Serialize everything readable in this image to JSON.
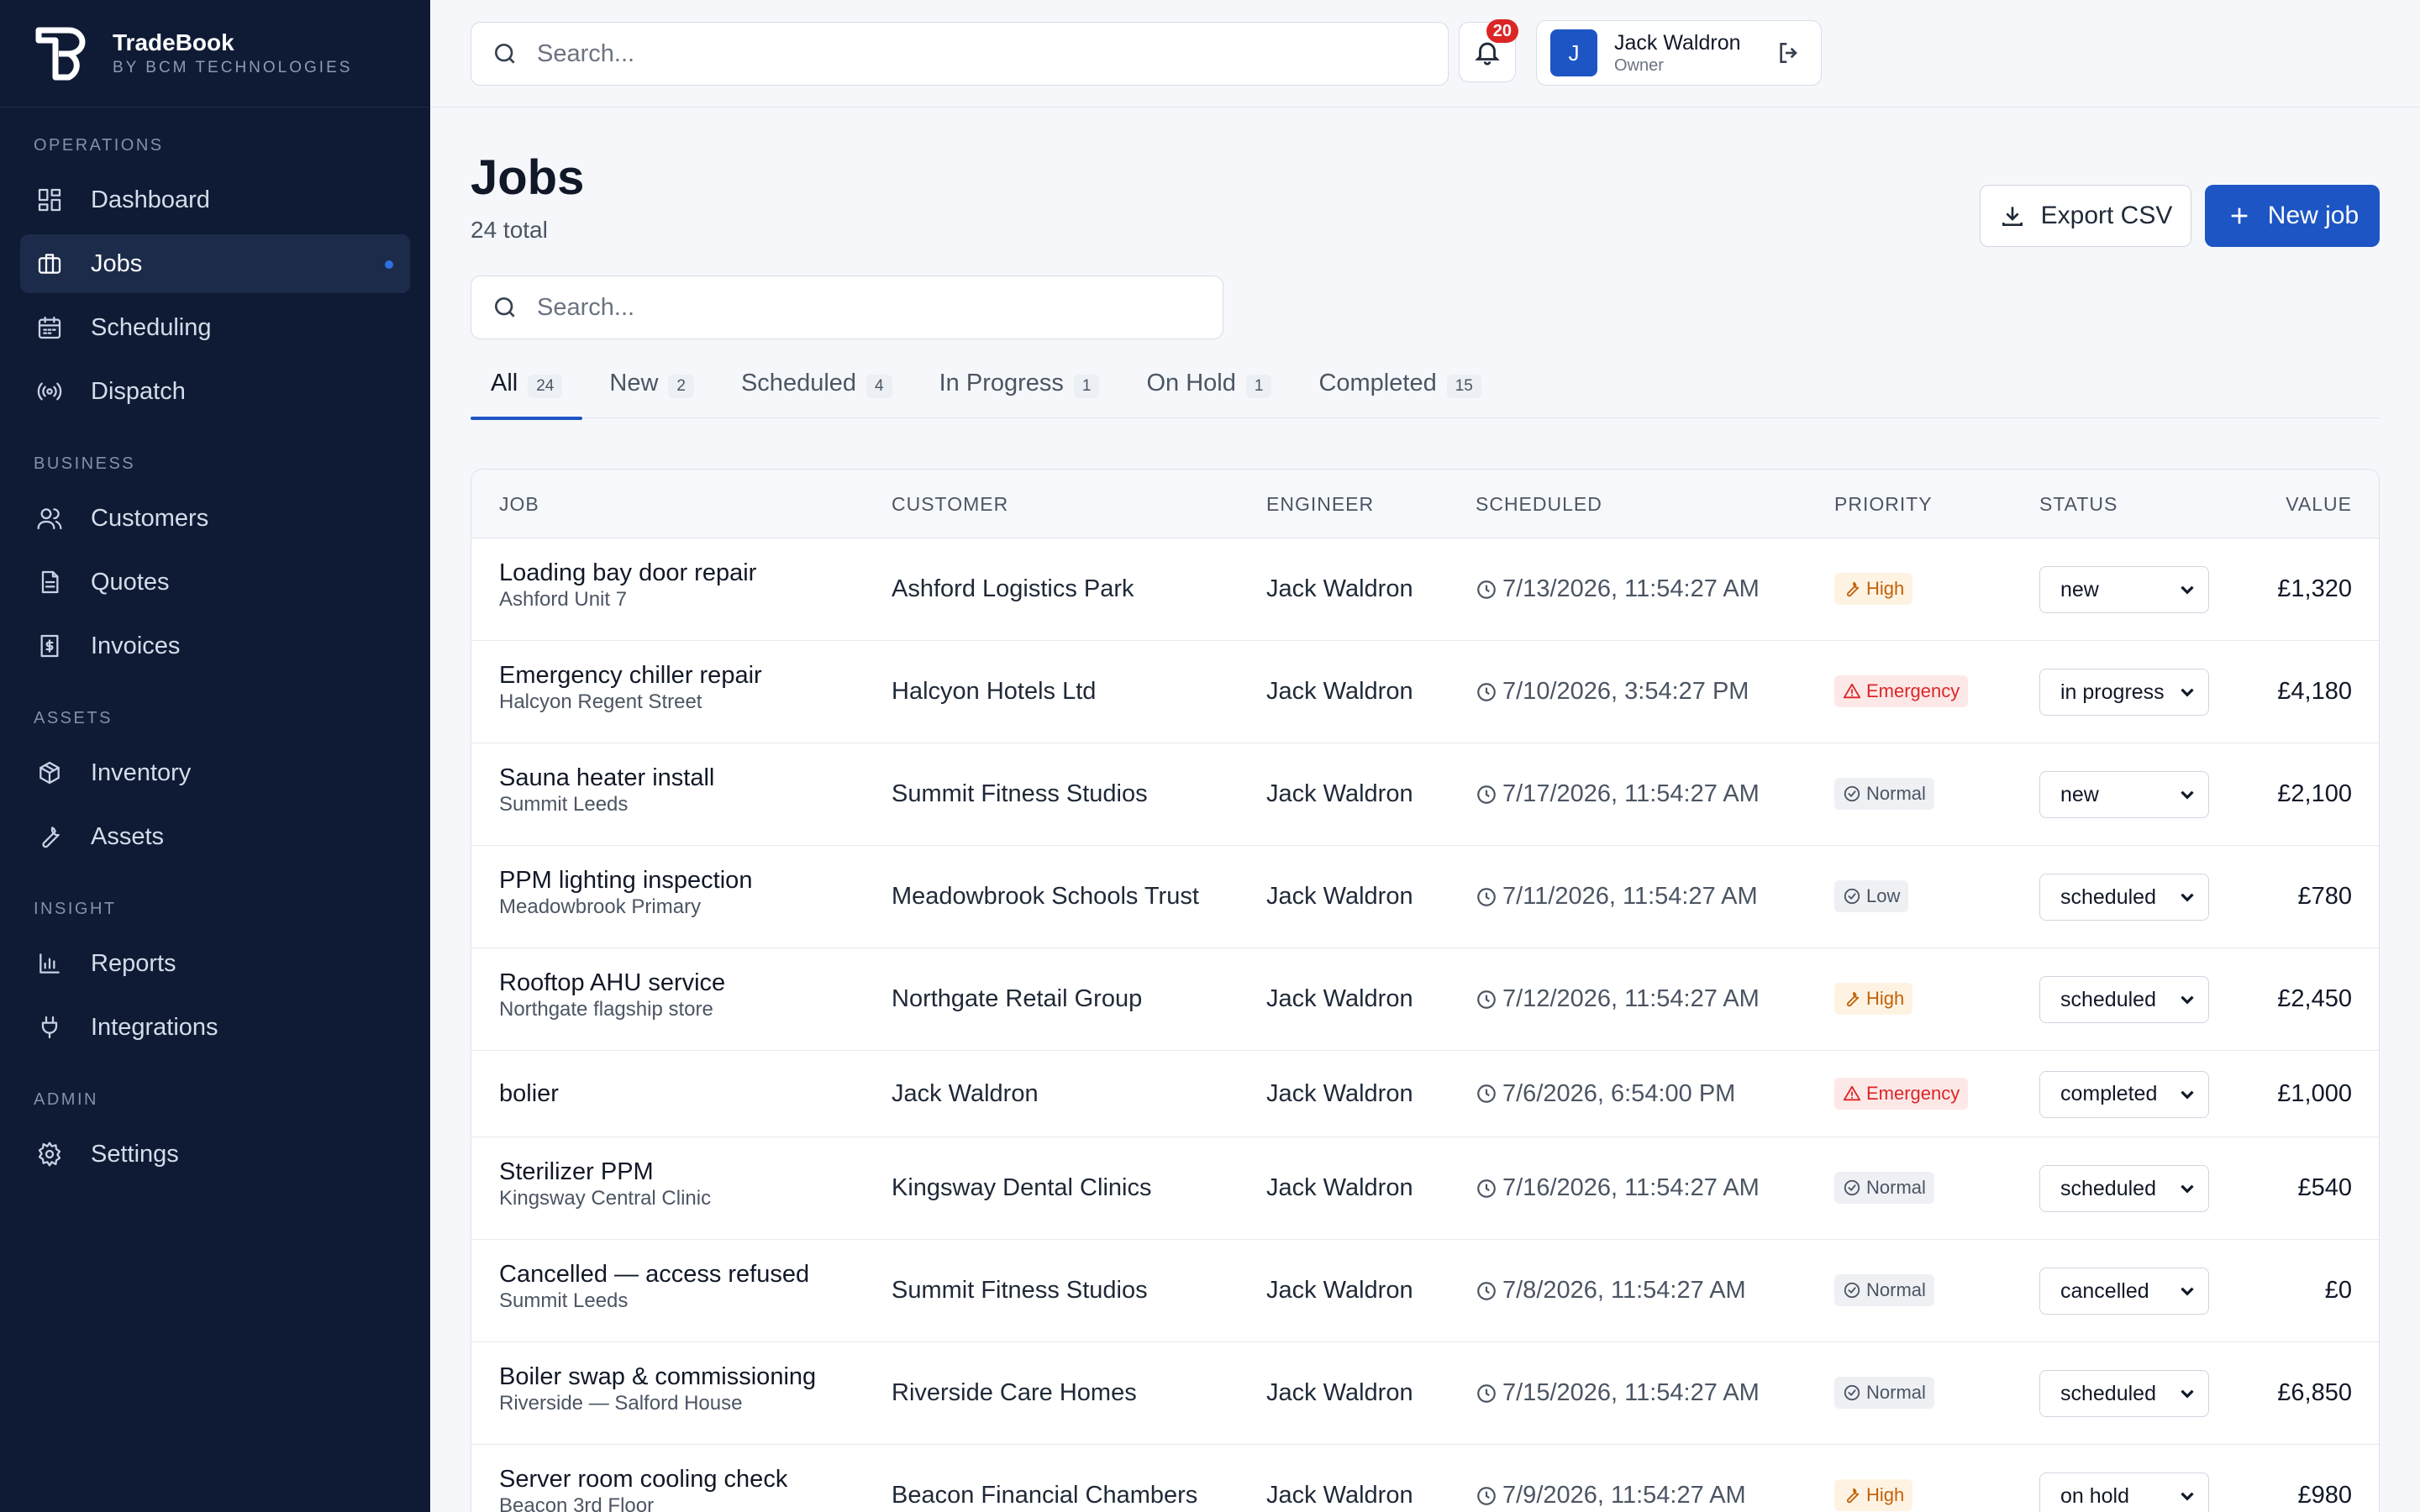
{
  "brand": {
    "name": "TradeBook",
    "subtitle": "BY BCM TECHNOLOGIES"
  },
  "sidebar": {
    "sections": [
      {
        "heading": "OPERATIONS",
        "items": [
          {
            "label": "Dashboard",
            "icon": "dashboard-icon"
          },
          {
            "label": "Jobs",
            "icon": "briefcase-icon",
            "active": true
          },
          {
            "label": "Scheduling",
            "icon": "calendar-icon"
          },
          {
            "label": "Dispatch",
            "icon": "radio-icon"
          }
        ]
      },
      {
        "heading": "BUSINESS",
        "items": [
          {
            "label": "Customers",
            "icon": "users-icon"
          },
          {
            "label": "Quotes",
            "icon": "document-icon"
          },
          {
            "label": "Invoices",
            "icon": "invoice-icon"
          }
        ]
      },
      {
        "heading": "ASSETS",
        "items": [
          {
            "label": "Inventory",
            "icon": "box-icon"
          },
          {
            "label": "Assets",
            "icon": "wrench-icon"
          }
        ]
      },
      {
        "heading": "INSIGHT",
        "items": [
          {
            "label": "Reports",
            "icon": "bar-chart-icon"
          },
          {
            "label": "Integrations",
            "icon": "plug-icon"
          }
        ]
      },
      {
        "heading": "ADMIN",
        "items": [
          {
            "label": "Settings",
            "icon": "gear-icon"
          }
        ]
      }
    ]
  },
  "topbar": {
    "search_placeholder": "Search...",
    "notifications_count": "20",
    "user": {
      "initial": "J",
      "name": "Jack Waldron",
      "role": "Owner"
    }
  },
  "page": {
    "title": "Jobs",
    "subtitle": "24 total",
    "export_label": "Export CSV",
    "new_label": "New job",
    "search_placeholder": "Search..."
  },
  "tabs": [
    {
      "label": "All",
      "count": "24",
      "active": true
    },
    {
      "label": "New",
      "count": "2"
    },
    {
      "label": "Scheduled",
      "count": "4"
    },
    {
      "label": "In Progress",
      "count": "1"
    },
    {
      "label": "On Hold",
      "count": "1"
    },
    {
      "label": "Completed",
      "count": "15"
    }
  ],
  "table": {
    "headers": {
      "job": "JOB",
      "customer": "CUSTOMER",
      "engineer": "ENGINEER",
      "scheduled": "SCHEDULED",
      "priority": "PRIORITY",
      "status": "STATUS",
      "value": "VALUE"
    },
    "rows": [
      {
        "job": "Loading bay door repair",
        "site": "Ashford Unit 7",
        "customer": "Ashford Logistics Park",
        "engineer": "Jack Waldron",
        "scheduled": "7/13/2026, 11:54:27 AM",
        "priority": "High",
        "status": "new",
        "value": "£1,320"
      },
      {
        "job": "Emergency chiller repair",
        "site": "Halcyon Regent Street",
        "customer": "Halcyon Hotels Ltd",
        "engineer": "Jack Waldron",
        "scheduled": "7/10/2026, 3:54:27 PM",
        "priority": "Emergency",
        "status": "in progress",
        "value": "£4,180"
      },
      {
        "job": "Sauna heater install",
        "site": "Summit Leeds",
        "customer": "Summit Fitness Studios",
        "engineer": "Jack Waldron",
        "scheduled": "7/17/2026, 11:54:27 AM",
        "priority": "Normal",
        "status": "new",
        "value": "£2,100"
      },
      {
        "job": "PPM lighting inspection",
        "site": "Meadowbrook Primary",
        "customer": "Meadowbrook Schools Trust",
        "engineer": "Jack Waldron",
        "scheduled": "7/11/2026, 11:54:27 AM",
        "priority": "Low",
        "status": "scheduled",
        "value": "£780"
      },
      {
        "job": "Rooftop AHU service",
        "site": "Northgate flagship store",
        "customer": "Northgate Retail Group",
        "engineer": "Jack Waldron",
        "scheduled": "7/12/2026, 11:54:27 AM",
        "priority": "High",
        "status": "scheduled",
        "value": "£2,450"
      },
      {
        "job": "bolier",
        "site": "",
        "customer": "Jack Waldron",
        "engineer": "Jack Waldron",
        "scheduled": "7/6/2026, 6:54:00 PM",
        "priority": "Emergency",
        "status": "completed",
        "value": "£1,000"
      },
      {
        "job": "Sterilizer PPM",
        "site": "Kingsway Central Clinic",
        "customer": "Kingsway Dental Clinics",
        "engineer": "Jack Waldron",
        "scheduled": "7/16/2026, 11:54:27 AM",
        "priority": "Normal",
        "status": "scheduled",
        "value": "£540"
      },
      {
        "job": "Cancelled — access refused",
        "site": "Summit Leeds",
        "customer": "Summit Fitness Studios",
        "engineer": "Jack Waldron",
        "scheduled": "7/8/2026, 11:54:27 AM",
        "priority": "Normal",
        "status": "cancelled",
        "value": "£0"
      },
      {
        "job": "Boiler swap & commissioning",
        "site": "Riverside — Salford House",
        "customer": "Riverside Care Homes",
        "engineer": "Jack Waldron",
        "scheduled": "7/15/2026, 11:54:27 AM",
        "priority": "Normal",
        "status": "scheduled",
        "value": "£6,850"
      },
      {
        "job": "Server room cooling check",
        "site": "Beacon 3rd Floor",
        "customer": "Beacon Financial Chambers",
        "engineer": "Jack Waldron",
        "scheduled": "7/9/2026, 11:54:27 AM",
        "priority": "High",
        "status": "on hold",
        "value": "£980"
      }
    ]
  },
  "colors": {
    "sidebar_bg": "#0f1b35",
    "accent": "#1d55c4",
    "emergency": "#dc2626",
    "high": "#c2620a"
  }
}
